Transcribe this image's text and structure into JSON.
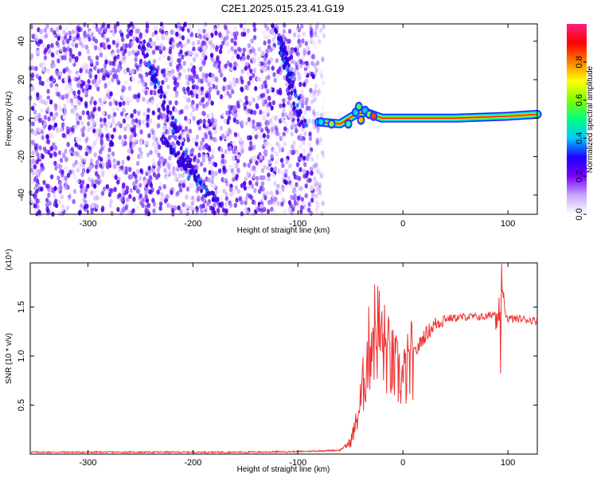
{
  "figure": {
    "title": "C2E1.2025.015.23.41.G19"
  },
  "chart_data": [
    {
      "type": "heatmap",
      "title": "C2E1.2025.015.23.41.G19",
      "xlabel": "Height of straight line (km)",
      "ylabel": "Frequency (Hz)",
      "xlim": [
        -355,
        128
      ],
      "ylim": [
        -50,
        49
      ],
      "x_ticks": [
        -300,
        -200,
        -100,
        0,
        100
      ],
      "y_ticks": [
        -40,
        -20,
        0,
        20,
        40
      ],
      "colorbar": {
        "label": "Normalized spectral amplitude",
        "range": [
          0.0,
          1.0
        ],
        "ticks": [
          0.0,
          0.2,
          0.4,
          0.6,
          0.8
        ],
        "tick_labels": [
          "0.0",
          "0.2",
          "0.4",
          "0.6",
          "0.8"
        ],
        "colormap": [
          "#ffffff",
          "#c8a8ff",
          "#6a00ff",
          "#0000ff",
          "#00c8ff",
          "#00ff88",
          "#80ff00",
          "#ffff00",
          "#ff8000",
          "#ff0000",
          "#ff00aa"
        ]
      },
      "features": {
        "noise_region_x": [
          -355,
          -75
        ],
        "signal_track": [
          [
            -80,
            -2
          ],
          [
            -60,
            -3
          ],
          [
            -45,
            2
          ],
          [
            -35,
            3
          ],
          [
            -20,
            0
          ],
          [
            0,
            0
          ],
          [
            50,
            0
          ],
          [
            100,
            1
          ],
          [
            128,
            2
          ]
        ]
      }
    },
    {
      "type": "line",
      "xlabel": "Height of straight line (km)",
      "ylabel": "SNR (10 * v/v)",
      "multiplier_label": "(x10⁴)",
      "xlim": [
        -355,
        128
      ],
      "ylim": [
        0,
        1.95
      ],
      "x_ticks": [
        -300,
        -200,
        -100,
        0,
        100
      ],
      "y_ticks": [
        0.5,
        1.0,
        1.5
      ],
      "series": [
        {
          "color": "#ee3333",
          "points": [
            [
              -355,
              0.02
            ],
            [
              -250,
              0.02
            ],
            [
              -150,
              0.02
            ],
            [
              -100,
              0.025
            ],
            [
              -60,
              0.04
            ],
            [
              -50,
              0.12
            ],
            [
              -45,
              0.3
            ],
            [
              -40,
              0.55
            ],
            [
              -35,
              0.9
            ],
            [
              -30,
              1.2
            ],
            [
              -25,
              1.3
            ],
            [
              -20,
              1.15
            ],
            [
              -10,
              0.9
            ],
            [
              0,
              0.75
            ],
            [
              10,
              1.0
            ],
            [
              20,
              1.2
            ],
            [
              30,
              1.32
            ],
            [
              40,
              1.38
            ],
            [
              60,
              1.4
            ],
            [
              80,
              1.4
            ],
            [
              90,
              1.45
            ],
            [
              95,
              1.5
            ],
            [
              100,
              1.38
            ],
            [
              110,
              1.38
            ],
            [
              128,
              1.36
            ]
          ]
        }
      ]
    }
  ]
}
